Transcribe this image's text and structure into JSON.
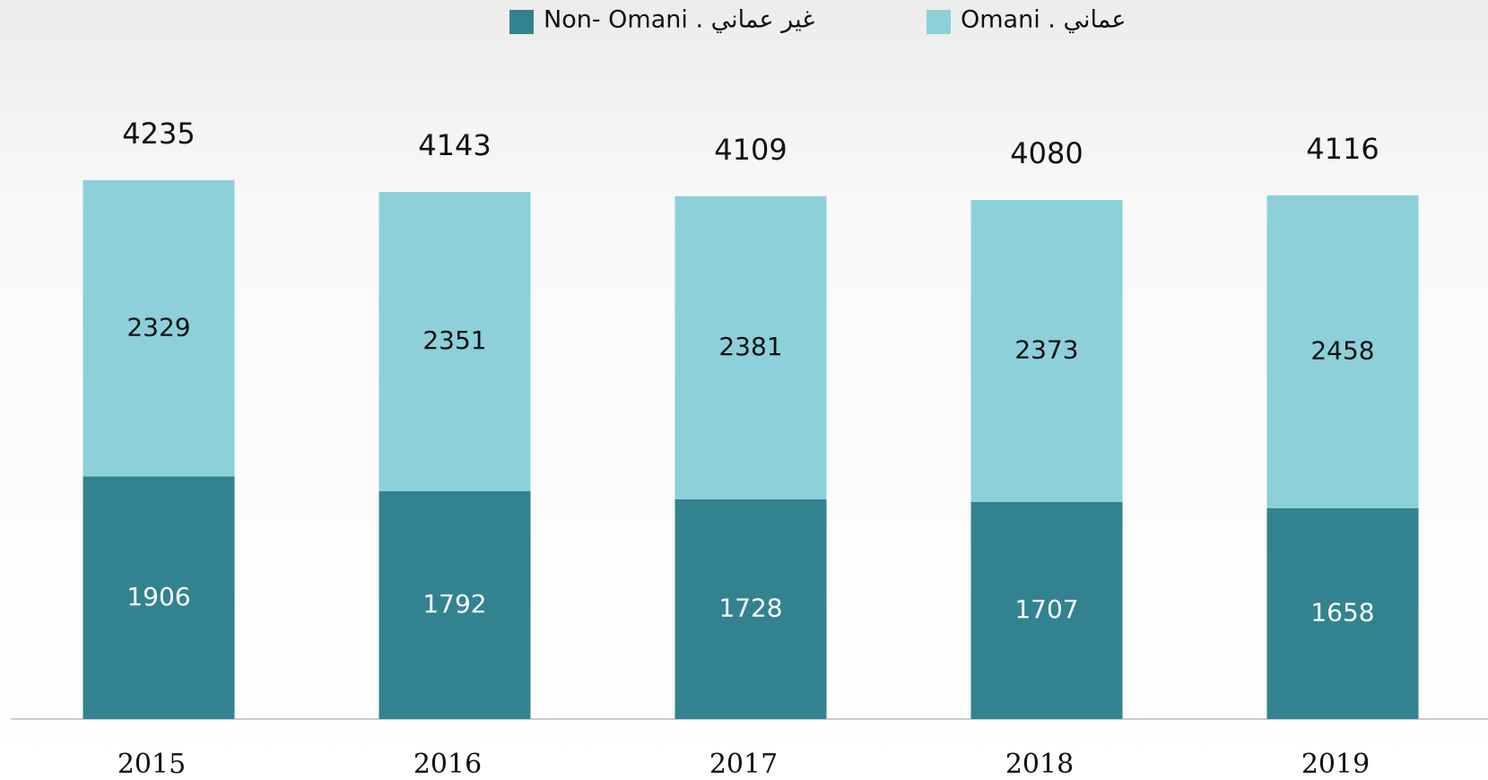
{
  "chart_data": {
    "type": "stacked_bar",
    "categories": [
      "2015",
      "2016",
      "2017",
      "2018",
      "2019"
    ],
    "series": [
      {
        "name": "Non- Omani . غير عماني",
        "color": "#338290",
        "values": [
          1906,
          1792,
          1728,
          1707,
          1658
        ]
      },
      {
        "name": "Omani . عماني",
        "color": "#8dd0da",
        "values": [
          2329,
          2351,
          2381,
          2373,
          2458
        ]
      }
    ],
    "totals": [
      4235,
      4143,
      4109,
      4080,
      4116
    ],
    "legend": "top"
  }
}
